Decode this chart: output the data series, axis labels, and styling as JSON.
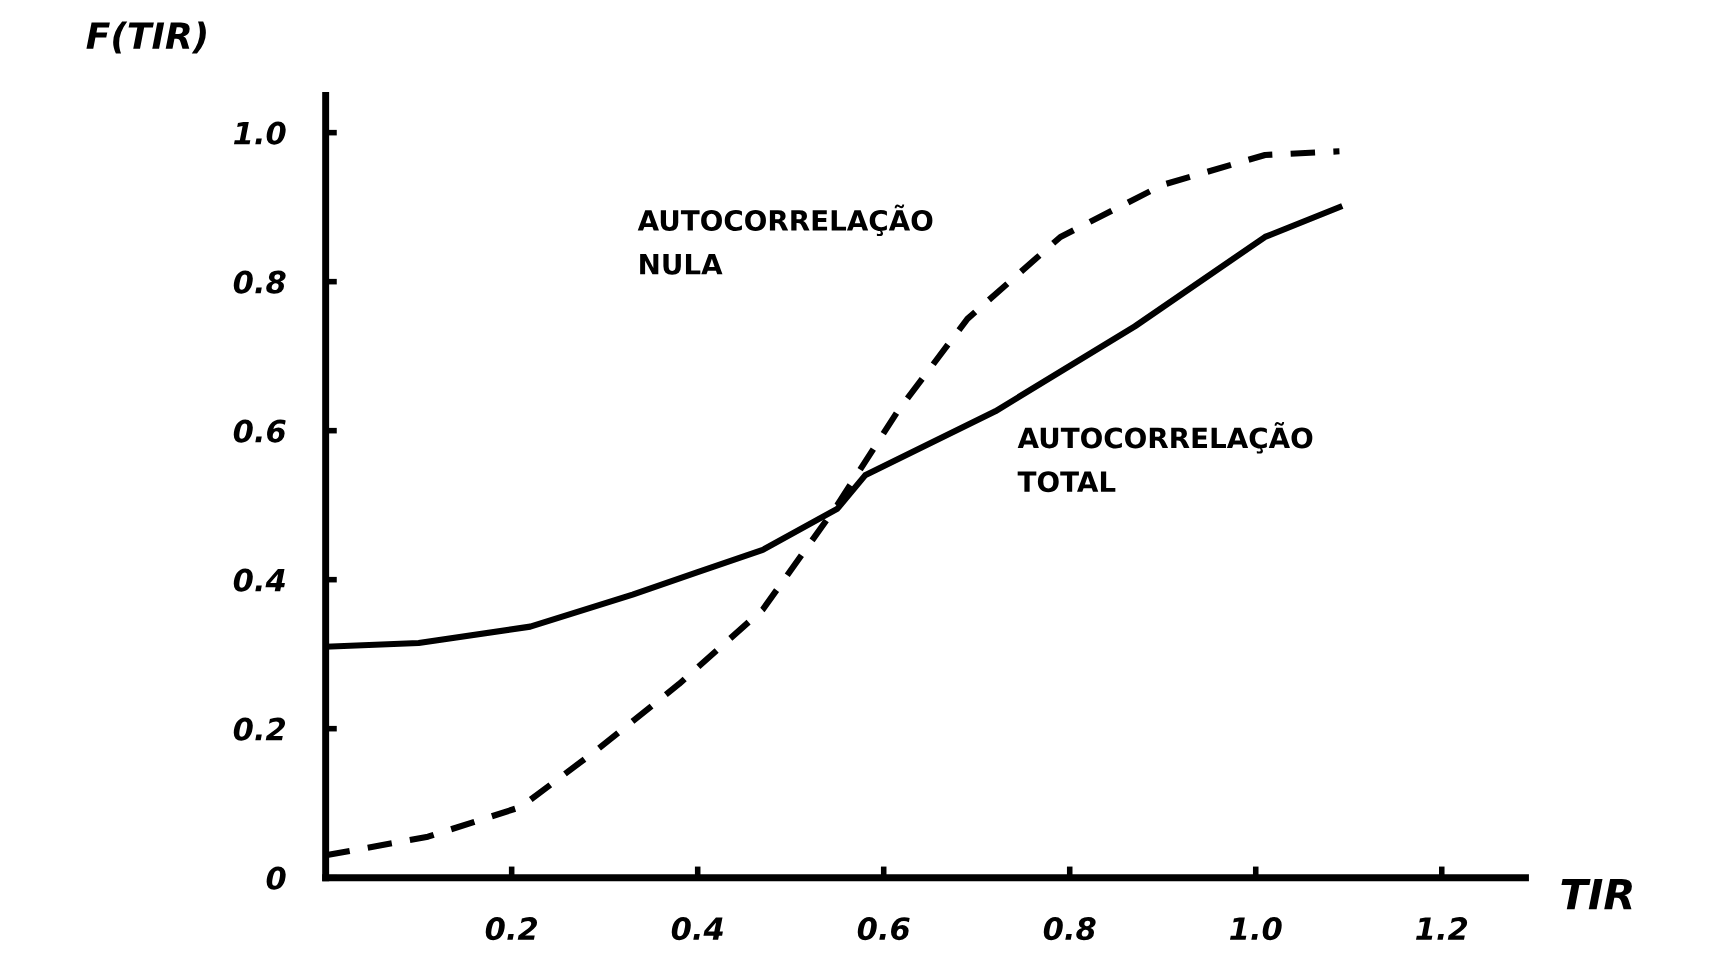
{
  "chart_data": {
    "type": "line",
    "xlabel": "TIR",
    "ylabel": "F(TIR)",
    "xlim": [
      0,
      1.29
    ],
    "ylim": [
      0,
      1.05
    ],
    "xticks": [
      0.2,
      0.4,
      0.6,
      0.8,
      {
        "value": 1,
        "label": "1.0"
      },
      1.2
    ],
    "yticks": [
      {
        "value": 0,
        "label": "0"
      },
      0.2,
      0.4,
      0.6,
      0.8,
      {
        "value": 1,
        "label": "1.0"
      }
    ],
    "grid": false,
    "legend": false,
    "marker": "none",
    "series": [
      {
        "name": "AUTOCORRELAÇÃO NULA",
        "color": "#000000",
        "line_style": "dashed",
        "x": [
          0,
          0.11,
          0.21,
          0.29,
          0.38,
          0.47,
          0.55,
          0.615,
          0.69,
          0.79,
          0.9,
          1.01,
          1.09
        ],
        "values": [
          0.03,
          0.055,
          0.095,
          0.17,
          0.26,
          0.36,
          0.5,
          0.626,
          0.75,
          0.86,
          0.93,
          0.97,
          0.975
        ]
      },
      {
        "name": "AUTOCORRELAÇÃO TOTAL",
        "color": "#000000",
        "line_style": "solid",
        "x": [
          0,
          0.1,
          0.22,
          0.33,
          0.4,
          0.47,
          0.55,
          0.58,
          0.72,
          0.87,
          1.01,
          1.09
        ],
        "values": [
          0.31,
          0.315,
          0.337,
          0.38,
          0.41,
          0.44,
          0.495,
          0.54,
          0.626,
          0.74,
          0.86,
          0.9
        ]
      }
    ]
  }
}
